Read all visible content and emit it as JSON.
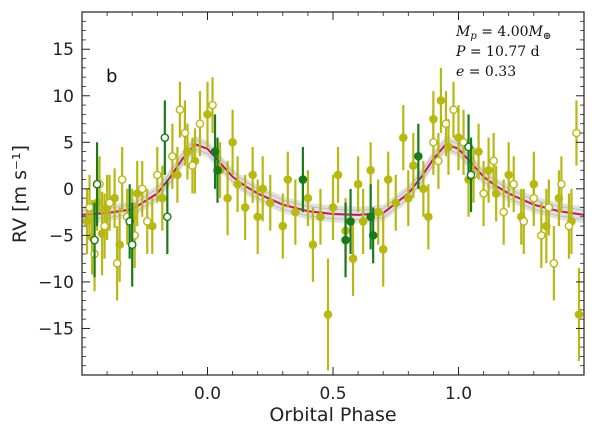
{
  "chart_data": {
    "type": "scatter",
    "title": "",
    "xlabel": "Orbital Phase",
    "ylabel": "RV [m s⁻¹]",
    "xlim": [
      -0.5,
      1.5
    ],
    "ylim": [
      -20,
      19
    ],
    "x_ticks": [
      0.0,
      0.5,
      1.0
    ],
    "x_tick_labels": [
      "0.0",
      "0.5",
      "1.0"
    ],
    "y_ticks": [
      -15,
      -10,
      -5,
      0,
      5,
      10,
      15
    ],
    "y_tick_labels": [
      "−15",
      "−10",
      "−5",
      "0",
      "5",
      "10",
      "15"
    ],
    "panel_label": "b",
    "annotations": [
      "M_p = 4.00M_⊕",
      "P = 10.77 d",
      "e = 0.33"
    ],
    "model_curve": {
      "x": [
        -0.5,
        -0.4,
        -0.3,
        -0.2,
        -0.15,
        -0.1,
        -0.05,
        0.0,
        0.05,
        0.1,
        0.15,
        0.2,
        0.3,
        0.4,
        0.5,
        0.6,
        0.7,
        0.8,
        0.85,
        0.9,
        0.95,
        1.0,
        1.05,
        1.1,
        1.15,
        1.2,
        1.3,
        1.4,
        1.5
      ],
      "y": [
        -2.8,
        -2.6,
        -2.2,
        -0.5,
        1.2,
        3.2,
        4.8,
        4.3,
        2.8,
        1.3,
        0.3,
        -0.5,
        -1.7,
        -2.4,
        -2.7,
        -2.8,
        -2.6,
        -0.5,
        1.2,
        3.2,
        4.8,
        4.3,
        2.8,
        1.3,
        0.3,
        -0.5,
        -1.7,
        -2.4,
        -2.8
      ]
    },
    "series": [
      {
        "name": "",
        "color": "#b8b814",
        "marker": "filled",
        "points": [
          {
            "x": -0.48,
            "y": -3.5,
            "err": 3.5
          },
          {
            "x": -0.46,
            "y": -5.2,
            "err": 4.0
          },
          {
            "x": -0.44,
            "y": -1.5,
            "err": 3.0
          },
          {
            "x": -0.42,
            "y": -4.8,
            "err": 4.5
          },
          {
            "x": -0.4,
            "y": -2.0,
            "err": 3.5
          },
          {
            "x": -0.37,
            "y": -1.0,
            "err": 3.2
          },
          {
            "x": -0.35,
            "y": -6.0,
            "err": 4.0
          },
          {
            "x": -0.3,
            "y": -3.0,
            "err": 3.0
          },
          {
            "x": -0.28,
            "y": -0.5,
            "err": 3.5
          },
          {
            "x": -0.22,
            "y": -4.0,
            "err": 3.0
          },
          {
            "x": -0.18,
            "y": -1.0,
            "err": 3.5
          },
          {
            "x": -0.12,
            "y": 1.5,
            "err": 3.0
          },
          {
            "x": -0.08,
            "y": 4.0,
            "err": 3.0
          },
          {
            "x": -0.05,
            "y": 3.0,
            "err": 3.5
          },
          {
            "x": 0.0,
            "y": 8.0,
            "err": 3.5
          },
          {
            "x": 0.05,
            "y": 2.0,
            "err": 3.0
          },
          {
            "x": 0.08,
            "y": -1.0,
            "err": 4.0
          },
          {
            "x": 0.1,
            "y": 5.0,
            "err": 3.5
          },
          {
            "x": 0.12,
            "y": 0.5,
            "err": 3.0
          },
          {
            "x": 0.15,
            "y": -2.0,
            "err": 3.5
          },
          {
            "x": 0.18,
            "y": 1.5,
            "err": 3.0
          },
          {
            "x": 0.2,
            "y": -3.0,
            "err": 4.0
          },
          {
            "x": 0.22,
            "y": 0.0,
            "err": 3.5
          },
          {
            "x": 0.25,
            "y": -1.5,
            "err": 3.0
          },
          {
            "x": 0.3,
            "y": -4.0,
            "err": 3.5
          },
          {
            "x": 0.32,
            "y": 1.0,
            "err": 3.0
          },
          {
            "x": 0.35,
            "y": -2.5,
            "err": 3.5
          },
          {
            "x": 0.4,
            "y": -1.0,
            "err": 3.0
          },
          {
            "x": 0.42,
            "y": -6.0,
            "err": 4.0
          },
          {
            "x": 0.45,
            "y": -3.0,
            "err": 3.0
          },
          {
            "x": 0.48,
            "y": -13.5,
            "err": 6.0
          },
          {
            "x": 0.5,
            "y": -2.0,
            "err": 3.5
          },
          {
            "x": 0.52,
            "y": 1.5,
            "err": 3.0
          },
          {
            "x": 0.55,
            "y": -4.5,
            "err": 3.5
          },
          {
            "x": 0.58,
            "y": -7.5,
            "err": 4.0
          },
          {
            "x": 0.6,
            "y": 0.5,
            "err": 3.0
          },
          {
            "x": 0.62,
            "y": -3.5,
            "err": 3.5
          },
          {
            "x": 0.65,
            "y": 2.0,
            "err": 3.0
          },
          {
            "x": 0.68,
            "y": -2.5,
            "err": 3.5
          },
          {
            "x": 0.7,
            "y": -6.5,
            "err": 4.0
          },
          {
            "x": 0.72,
            "y": 1.0,
            "err": 3.0
          },
          {
            "x": 0.75,
            "y": -1.5,
            "err": 3.0
          },
          {
            "x": 0.78,
            "y": 5.5,
            "err": 3.5
          },
          {
            "x": 0.8,
            "y": -1.0,
            "err": 3.0
          },
          {
            "x": 0.82,
            "y": 2.5,
            "err": 3.5
          },
          {
            "x": 0.86,
            "y": 0.0,
            "err": 3.0
          },
          {
            "x": 0.88,
            "y": -3.0,
            "err": 3.5
          },
          {
            "x": 0.9,
            "y": 7.5,
            "err": 3.0
          },
          {
            "x": 0.93,
            "y": 9.5,
            "err": 3.5
          },
          {
            "x": 0.96,
            "y": 4.5,
            "err": 3.0
          },
          {
            "x": 1.0,
            "y": 5.5,
            "err": 3.5
          },
          {
            "x": 1.04,
            "y": 1.0,
            "err": 4.0
          },
          {
            "x": 1.08,
            "y": 4.0,
            "err": 3.0
          },
          {
            "x": 1.12,
            "y": 2.0,
            "err": 3.5
          },
          {
            "x": 1.15,
            "y": -0.5,
            "err": 3.0
          },
          {
            "x": 1.2,
            "y": 1.5,
            "err": 3.5
          },
          {
            "x": 1.25,
            "y": -3.0,
            "err": 3.0
          },
          {
            "x": 1.3,
            "y": 0.5,
            "err": 3.5
          },
          {
            "x": 1.35,
            "y": -4.0,
            "err": 4.0
          },
          {
            "x": 1.4,
            "y": -1.0,
            "err": 3.0
          },
          {
            "x": 1.45,
            "y": -3.5,
            "err": 3.5
          },
          {
            "x": 1.48,
            "y": -13.5,
            "err": 5.0
          }
        ]
      },
      {
        "name": "",
        "color": "#b8b814",
        "marker": "open",
        "points": [
          {
            "x": -0.47,
            "y": -2.0,
            "err": 3.5
          },
          {
            "x": -0.45,
            "y": -7.0,
            "err": 4.0
          },
          {
            "x": -0.43,
            "y": 0.5,
            "err": 3.0
          },
          {
            "x": -0.41,
            "y": -4.0,
            "err": 3.5
          },
          {
            "x": -0.39,
            "y": -1.5,
            "err": 3.0
          },
          {
            "x": -0.36,
            "y": -8.0,
            "err": 4.0
          },
          {
            "x": -0.34,
            "y": 1.0,
            "err": 3.5
          },
          {
            "x": -0.32,
            "y": -3.0,
            "err": 3.0
          },
          {
            "x": -0.29,
            "y": -5.0,
            "err": 3.5
          },
          {
            "x": -0.26,
            "y": 0.0,
            "err": 3.0
          },
          {
            "x": -0.24,
            "y": -3.5,
            "err": 3.5
          },
          {
            "x": -0.2,
            "y": 1.5,
            "err": 3.0
          },
          {
            "x": -0.14,
            "y": 3.5,
            "err": 3.5
          },
          {
            "x": -0.11,
            "y": 8.5,
            "err": 3.0
          },
          {
            "x": -0.09,
            "y": 6.0,
            "err": 3.5
          },
          {
            "x": -0.06,
            "y": 2.5,
            "err": 3.0
          },
          {
            "x": -0.03,
            "y": 7.0,
            "err": 3.5
          },
          {
            "x": 0.02,
            "y": 9.0,
            "err": 3.0
          },
          {
            "x": 0.9,
            "y": 5.0,
            "err": 3.5
          },
          {
            "x": 0.92,
            "y": 3.0,
            "err": 3.0
          },
          {
            "x": 0.95,
            "y": 7.0,
            "err": 3.5
          },
          {
            "x": 0.98,
            "y": 8.5,
            "err": 3.0
          },
          {
            "x": 1.02,
            "y": 5.0,
            "err": 3.5
          },
          {
            "x": 1.06,
            "y": 1.5,
            "err": 3.0
          },
          {
            "x": 1.1,
            "y": -0.5,
            "err": 3.5
          },
          {
            "x": 1.14,
            "y": 3.0,
            "err": 3.0
          },
          {
            "x": 1.18,
            "y": -2.5,
            "err": 3.5
          },
          {
            "x": 1.22,
            "y": 0.5,
            "err": 3.0
          },
          {
            "x": 1.26,
            "y": -3.5,
            "err": 3.5
          },
          {
            "x": 1.3,
            "y": -1.0,
            "err": 3.0
          },
          {
            "x": 1.33,
            "y": -5.0,
            "err": 3.5
          },
          {
            "x": 1.36,
            "y": -2.0,
            "err": 3.0
          },
          {
            "x": 1.38,
            "y": -8.0,
            "err": 4.0
          },
          {
            "x": 1.41,
            "y": 0.5,
            "err": 3.0
          },
          {
            "x": 1.44,
            "y": -4.0,
            "err": 3.5
          },
          {
            "x": 1.47,
            "y": 6.0,
            "err": 3.5
          }
        ]
      },
      {
        "name": "",
        "color": "#1a7a1a",
        "marker": "filled",
        "points": [
          {
            "x": 0.03,
            "y": 4.0,
            "err": 4.0
          },
          {
            "x": 0.04,
            "y": 2.0,
            "err": 3.5
          },
          {
            "x": 0.38,
            "y": 1.0,
            "err": 3.5
          },
          {
            "x": 0.55,
            "y": -5.5,
            "err": 4.0
          },
          {
            "x": 0.57,
            "y": -3.5,
            "err": 3.5
          },
          {
            "x": 0.65,
            "y": -3.0,
            "err": 3.5
          },
          {
            "x": 0.66,
            "y": -5.0,
            "err": 3.0
          },
          {
            "x": 0.84,
            "y": 3.5,
            "err": 3.5
          }
        ]
      },
      {
        "name": "",
        "color": "#1a7a1a",
        "marker": "open",
        "points": [
          {
            "x": -0.44,
            "y": 0.5,
            "err": 4.5
          },
          {
            "x": -0.45,
            "y": -5.5,
            "err": 4.0
          },
          {
            "x": -0.31,
            "y": -3.5,
            "err": 4.0
          },
          {
            "x": -0.3,
            "y": -6.0,
            "err": 4.5
          },
          {
            "x": -0.17,
            "y": 5.5,
            "err": 4.0
          },
          {
            "x": -0.16,
            "y": -3.0,
            "err": 4.0
          },
          {
            "x": 1.04,
            "y": 4.5,
            "err": 3.5
          },
          {
            "x": 1.05,
            "y": 1.5,
            "err": 4.0
          }
        ]
      }
    ]
  }
}
